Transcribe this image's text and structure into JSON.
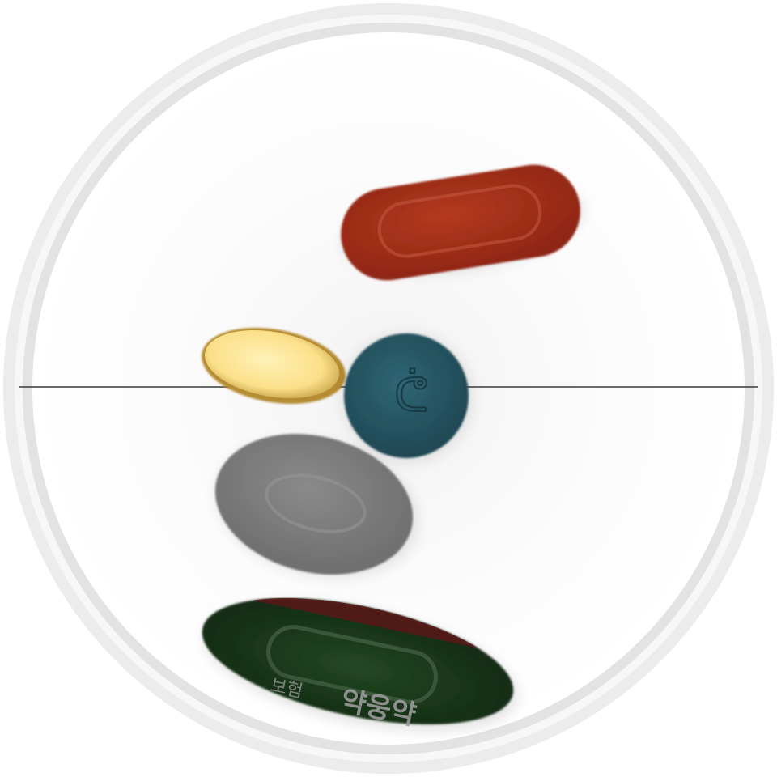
{
  "scene": {
    "background_color": "#ffffff",
    "tray_ring_color": "#e6e6e6",
    "divider_line_color": "#333333"
  },
  "pills": [
    {
      "name": "red-oblong-tablet",
      "shape": "oblong",
      "color": "#a8301a",
      "imprint": ""
    },
    {
      "name": "yellow-oval-softgel",
      "shape": "oval",
      "color": "#fbe08a",
      "imprint": ""
    },
    {
      "name": "teal-round-tablet",
      "shape": "round",
      "color": "#285865",
      "imprint": "ᕧ"
    },
    {
      "name": "gray-oval-tablet",
      "shape": "oval",
      "color": "#808080",
      "imprint": ""
    },
    {
      "name": "dark-green-oblong-tablet",
      "shape": "oblong",
      "color": "#1c3a1c",
      "top_edge_color": "#5a1818",
      "imprint_small": "보험",
      "imprint_large": "약웅약"
    }
  ]
}
